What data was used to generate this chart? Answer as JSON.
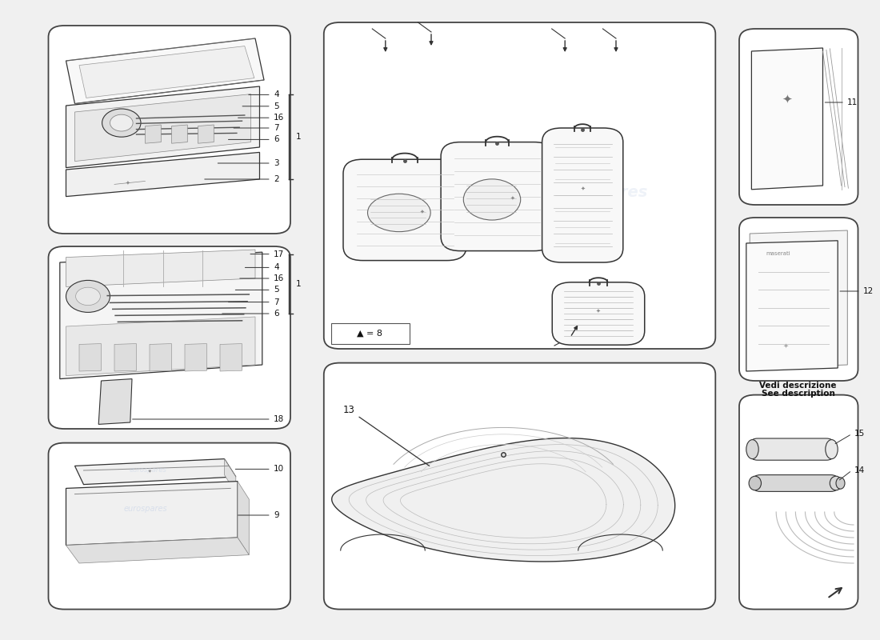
{
  "bg_color": "#f0f0f0",
  "panel_bg": "#ffffff",
  "panel_edge": "#444444",
  "line_color": "#333333",
  "light_line": "#aaaaaa",
  "wm_color": "#c8d4e8",
  "layout": {
    "panel_tb1": [
      0.055,
      0.635,
      0.275,
      0.325
    ],
    "panel_tb2": [
      0.055,
      0.33,
      0.275,
      0.285
    ],
    "panel_sb": [
      0.055,
      0.048,
      0.275,
      0.26
    ],
    "panel_lug": [
      0.368,
      0.455,
      0.445,
      0.51
    ],
    "panel_cov": [
      0.368,
      0.048,
      0.445,
      0.385
    ],
    "panel_bk1": [
      0.84,
      0.68,
      0.135,
      0.275
    ],
    "panel_bk2": [
      0.84,
      0.405,
      0.135,
      0.255
    ],
    "panel_cab": [
      0.84,
      0.048,
      0.135,
      0.335
    ]
  },
  "labels_tb1": [
    "4",
    "5",
    "16",
    "7",
    "6",
    "3",
    "2"
  ],
  "labels_tb2": [
    "17",
    "4",
    "16",
    "5",
    "7",
    "6",
    "18"
  ],
  "vedi_text": [
    "Vedi descrizione",
    "See description"
  ]
}
